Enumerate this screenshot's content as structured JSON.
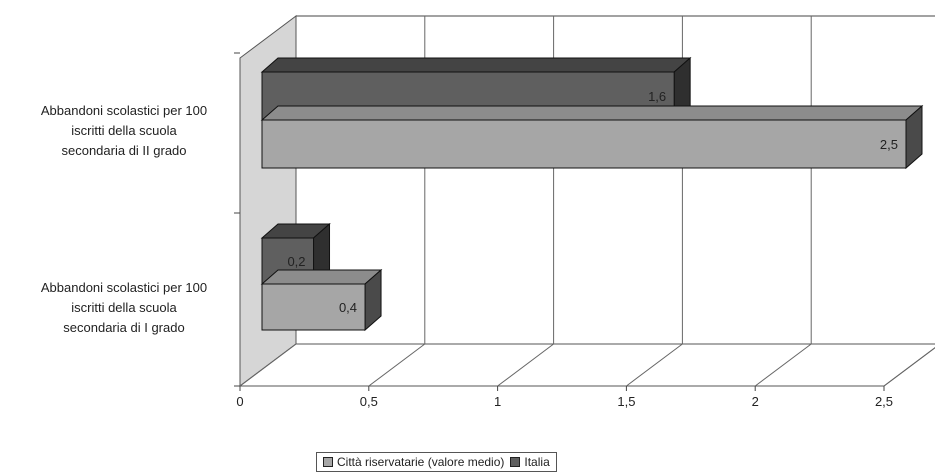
{
  "chart_data": {
    "type": "bar",
    "orientation": "horizontal",
    "three_d": true,
    "categories": [
      [
        "Abbandoni scolastici per 100",
        "iscritti della scuola",
        "secondaria di II grado"
      ],
      [
        "Abbandoni scolastici per 100",
        "iscritti della scuola",
        "secondaria di I grado"
      ]
    ],
    "series": [
      {
        "name": "Italia",
        "values": [
          1.6,
          0.2
        ],
        "labels": [
          "1,6",
          "0,2"
        ],
        "color": "#5f5f5f"
      },
      {
        "name": "Città riservatarie (valore medio)",
        "values": [
          2.5,
          0.4
        ],
        "labels": [
          "2,5",
          "0,4"
        ],
        "color": "#a6a6a6"
      }
    ],
    "xlim": [
      0,
      2.5
    ],
    "ticks": [
      "0",
      "0,5",
      "1",
      "1,5",
      "2",
      "2,5"
    ],
    "tick_values": [
      0,
      0.5,
      1,
      1.5,
      2,
      2.5
    ],
    "grid": true,
    "legend_position": "bottom",
    "legend_order": [
      "Città riservatarie (valore medio)",
      "Italia"
    ]
  }
}
